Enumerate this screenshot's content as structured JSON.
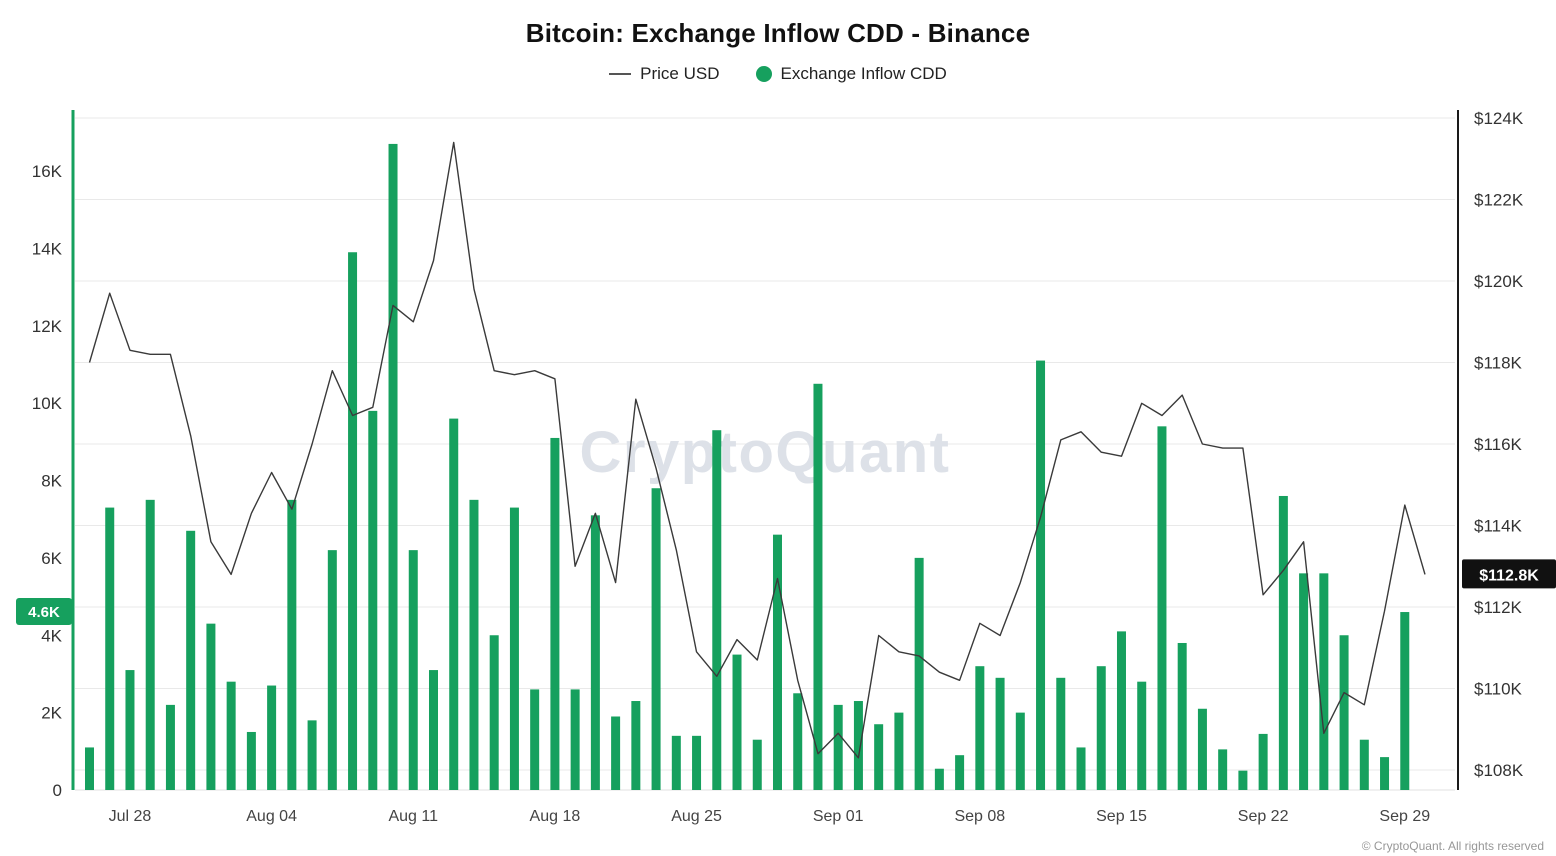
{
  "page": {
    "title": "Bitcoin: Exchange Inflow CDD - Binance",
    "watermark": "CryptoQuant",
    "copyright": "© CryptoQuant. All rights reserved"
  },
  "legend": {
    "price": "Price USD",
    "inflow": "Exchange Inflow CDD"
  },
  "colors": {
    "bar": "#16a05e",
    "price_line": "#3a3a3a",
    "grid": "#e9e9e9",
    "right_badge_bg": "#111111",
    "axis_label": "#333333"
  },
  "chart_data": {
    "type": "bar",
    "title": "Bitcoin: Exchange Inflow CDD - Binance",
    "x": [
      "Jul 26",
      "Jul 27",
      "Jul 28",
      "Jul 29",
      "Jul 30",
      "Jul 31",
      "Aug 01",
      "Aug 02",
      "Aug 03",
      "Aug 04",
      "Aug 05",
      "Aug 06",
      "Aug 07",
      "Aug 08",
      "Aug 09",
      "Aug 10",
      "Aug 11",
      "Aug 12",
      "Aug 13",
      "Aug 14",
      "Aug 15",
      "Aug 16",
      "Aug 17",
      "Aug 18",
      "Aug 19",
      "Aug 20",
      "Aug 21",
      "Aug 22",
      "Aug 23",
      "Aug 24",
      "Aug 25",
      "Aug 26",
      "Aug 27",
      "Aug 28",
      "Aug 29",
      "Aug 30",
      "Aug 31",
      "Sep 01",
      "Sep 02",
      "Sep 03",
      "Sep 04",
      "Sep 05",
      "Sep 06",
      "Sep 07",
      "Sep 08",
      "Sep 09",
      "Sep 10",
      "Sep 11",
      "Sep 12",
      "Sep 13",
      "Sep 14",
      "Sep 15",
      "Sep 16",
      "Sep 17",
      "Sep 18",
      "Sep 19",
      "Sep 20",
      "Sep 21",
      "Sep 22",
      "Sep 23",
      "Sep 24",
      "Sep 25",
      "Sep 26",
      "Sep 27",
      "Sep 28",
      "Sep 29",
      "Sep 30"
    ],
    "series": [
      {
        "name": "Exchange Inflow CDD",
        "type": "bar",
        "axis": "left",
        "unit": "K",
        "values": [
          1.1,
          7.3,
          3.1,
          7.5,
          2.2,
          6.7,
          4.3,
          2.8,
          1.5,
          2.7,
          7.5,
          1.8,
          6.2,
          13.9,
          9.8,
          16.7,
          6.2,
          3.1,
          9.6,
          7.5,
          4.0,
          7.3,
          2.6,
          9.1,
          2.6,
          7.1,
          1.9,
          2.3,
          7.8,
          1.4,
          1.4,
          9.3,
          3.5,
          1.3,
          6.6,
          2.5,
          10.5,
          2.2,
          2.3,
          1.7,
          2.0,
          6.0,
          0.55,
          0.9,
          3.2,
          2.9,
          2.0,
          11.1,
          2.9,
          1.1,
          3.2,
          4.1,
          2.8,
          9.4,
          3.8,
          2.1,
          1.05,
          0.5,
          1.45,
          7.6,
          5.6,
          5.6,
          4.0,
          1.3,
          0.85,
          4.6,
          null
        ]
      },
      {
        "name": "Price USD",
        "type": "line",
        "axis": "right",
        "unit": "$K",
        "values": [
          118.0,
          119.7,
          118.3,
          118.2,
          118.2,
          116.2,
          113.6,
          112.8,
          114.3,
          115.3,
          114.4,
          116.0,
          117.8,
          116.7,
          116.9,
          119.4,
          119.0,
          120.5,
          123.4,
          119.8,
          117.8,
          117.7,
          117.8,
          117.6,
          113.0,
          114.3,
          112.6,
          117.1,
          115.4,
          113.4,
          110.9,
          110.3,
          111.2,
          110.7,
          112.7,
          110.2,
          108.4,
          108.9,
          108.3,
          111.3,
          110.9,
          110.8,
          110.4,
          110.2,
          111.6,
          111.3,
          112.6,
          114.2,
          116.1,
          116.3,
          115.8,
          115.7,
          117.0,
          116.7,
          117.2,
          116.0,
          115.9,
          115.9,
          112.3,
          112.9,
          113.6,
          108.9,
          109.9,
          109.6,
          111.9,
          114.5,
          112.8
        ]
      }
    ],
    "left_axis": {
      "ticks": [
        "0",
        "2K",
        "4K",
        "6K",
        "8K",
        "10K",
        "12K",
        "14K",
        "16K"
      ],
      "tick_values": [
        0,
        2,
        4,
        6,
        8,
        10,
        12,
        14,
        16
      ],
      "range": [
        0,
        17.6
      ],
      "current_label": "4.6K",
      "current_value": 4.6
    },
    "right_axis": {
      "ticks": [
        "$108K",
        "$110K",
        "$112K",
        "$114K",
        "$116K",
        "$118K",
        "$120K",
        "$122K",
        "$124K"
      ],
      "tick_values": [
        108,
        110,
        112,
        114,
        116,
        118,
        120,
        122,
        124
      ],
      "range": [
        107.5,
        124.3
      ],
      "current_label": "$112.8K",
      "current_value": 112.8
    },
    "x_ticks": [
      {
        "label": "Jul 28",
        "index": 2
      },
      {
        "label": "Aug 04",
        "index": 9
      },
      {
        "label": "Aug 11",
        "index": 16
      },
      {
        "label": "Aug 18",
        "index": 23
      },
      {
        "label": "Aug 25",
        "index": 30
      },
      {
        "label": "Sep 01",
        "index": 37
      },
      {
        "label": "Sep 08",
        "index": 44
      },
      {
        "label": "Sep 15",
        "index": 51
      },
      {
        "label": "Sep 22",
        "index": 58
      },
      {
        "label": "Sep 29",
        "index": 65
      }
    ],
    "grid": "horizontal-only",
    "legend_position": "top-center"
  }
}
